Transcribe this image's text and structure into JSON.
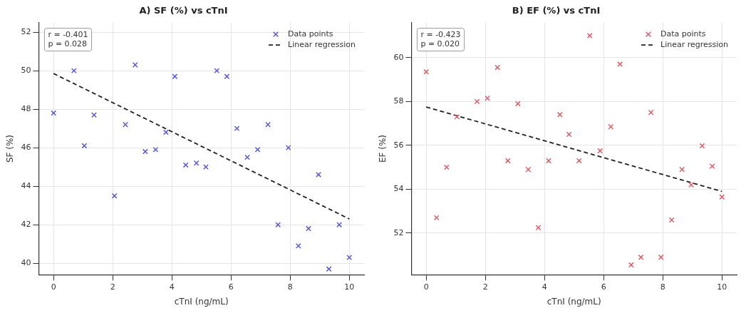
{
  "chart_data": [
    {
      "type": "scatter",
      "title": "A) SF (%) vs cTnI",
      "xlabel": "cTnI (ng/mL)",
      "ylabel": "SF (%)",
      "xlim": [
        -0.5,
        10.5
      ],
      "ylim": [
        39.4,
        52.5
      ],
      "xticks": [
        0,
        2,
        4,
        6,
        8,
        10
      ],
      "yticks": [
        40,
        42,
        44,
        46,
        48,
        50,
        52
      ],
      "grid": true,
      "legend": "top right",
      "annotations": [
        "r = -0.401",
        "p = 0.028"
      ],
      "series": [
        {
          "name": "Data points",
          "type": "scatter",
          "color": "#5b5bd6",
          "marker": "cross",
          "x": [
            0,
            0.69,
            1.04,
            1.37,
            2.06,
            2.43,
            2.76,
            3.1,
            3.45,
            3.8,
            4.1,
            4.47,
            4.83,
            5.15,
            5.52,
            5.86,
            6.2,
            6.55,
            6.9,
            7.25,
            7.59,
            7.94,
            8.28,
            8.62,
            8.96,
            9.31,
            9.66,
            10
          ],
          "values": [
            47.8,
            50.0,
            46.1,
            47.7,
            43.5,
            47.2,
            50.3,
            45.8,
            45.9,
            46.8,
            49.7,
            45.1,
            45.2,
            45.0,
            50.0,
            49.7,
            47.0,
            45.5,
            45.9,
            47.2,
            42.0,
            46.0,
            40.9,
            41.8,
            44.6,
            39.7,
            42.0,
            40.3
          ]
        },
        {
          "name": "Linear regression",
          "type": "line",
          "color": "#222222",
          "marker": "none",
          "line_style": "dashed",
          "x": [
            0,
            10
          ],
          "values": [
            49.85,
            42.3
          ]
        }
      ]
    },
    {
      "type": "scatter",
      "title": "B) EF (%) vs cTnI",
      "xlabel": "cTnI (ng/mL)",
      "ylabel": "EF (%)",
      "xlim": [
        -0.5,
        10.5
      ],
      "ylim": [
        50.1,
        61.6
      ],
      "xticks": [
        0,
        2,
        4,
        6,
        8,
        10
      ],
      "yticks": [
        52,
        54,
        56,
        58,
        60
      ],
      "grid": true,
      "legend": "top right",
      "annotations": [
        "r = -0.423",
        "p = 0.020"
      ],
      "series": [
        {
          "name": "Data points",
          "type": "scatter",
          "color": "#d9606a",
          "marker": "cross",
          "x": [
            0,
            0.35,
            0.69,
            1.04,
            1.72,
            2.07,
            2.41,
            2.76,
            3.1,
            3.45,
            3.79,
            4.14,
            4.52,
            4.83,
            5.17,
            5.53,
            5.88,
            6.24,
            6.55,
            6.93,
            7.26,
            7.6,
            7.94,
            8.3,
            8.65,
            8.96,
            9.33,
            9.67,
            10
          ],
          "values": [
            59.35,
            52.7,
            55.0,
            57.3,
            58.0,
            58.15,
            59.55,
            55.3,
            57.9,
            54.9,
            52.25,
            55.3,
            57.4,
            56.5,
            55.3,
            61.0,
            55.75,
            56.85,
            59.7,
            50.55,
            50.9,
            57.5,
            50.9,
            52.6,
            54.9,
            54.2,
            55.98,
            55.05,
            53.65
          ]
        },
        {
          "name": "Linear regression",
          "type": "line",
          "color": "#222222",
          "marker": "none",
          "line_style": "dashed",
          "x": [
            0,
            10
          ],
          "values": [
            57.75,
            53.9
          ]
        }
      ]
    }
  ]
}
